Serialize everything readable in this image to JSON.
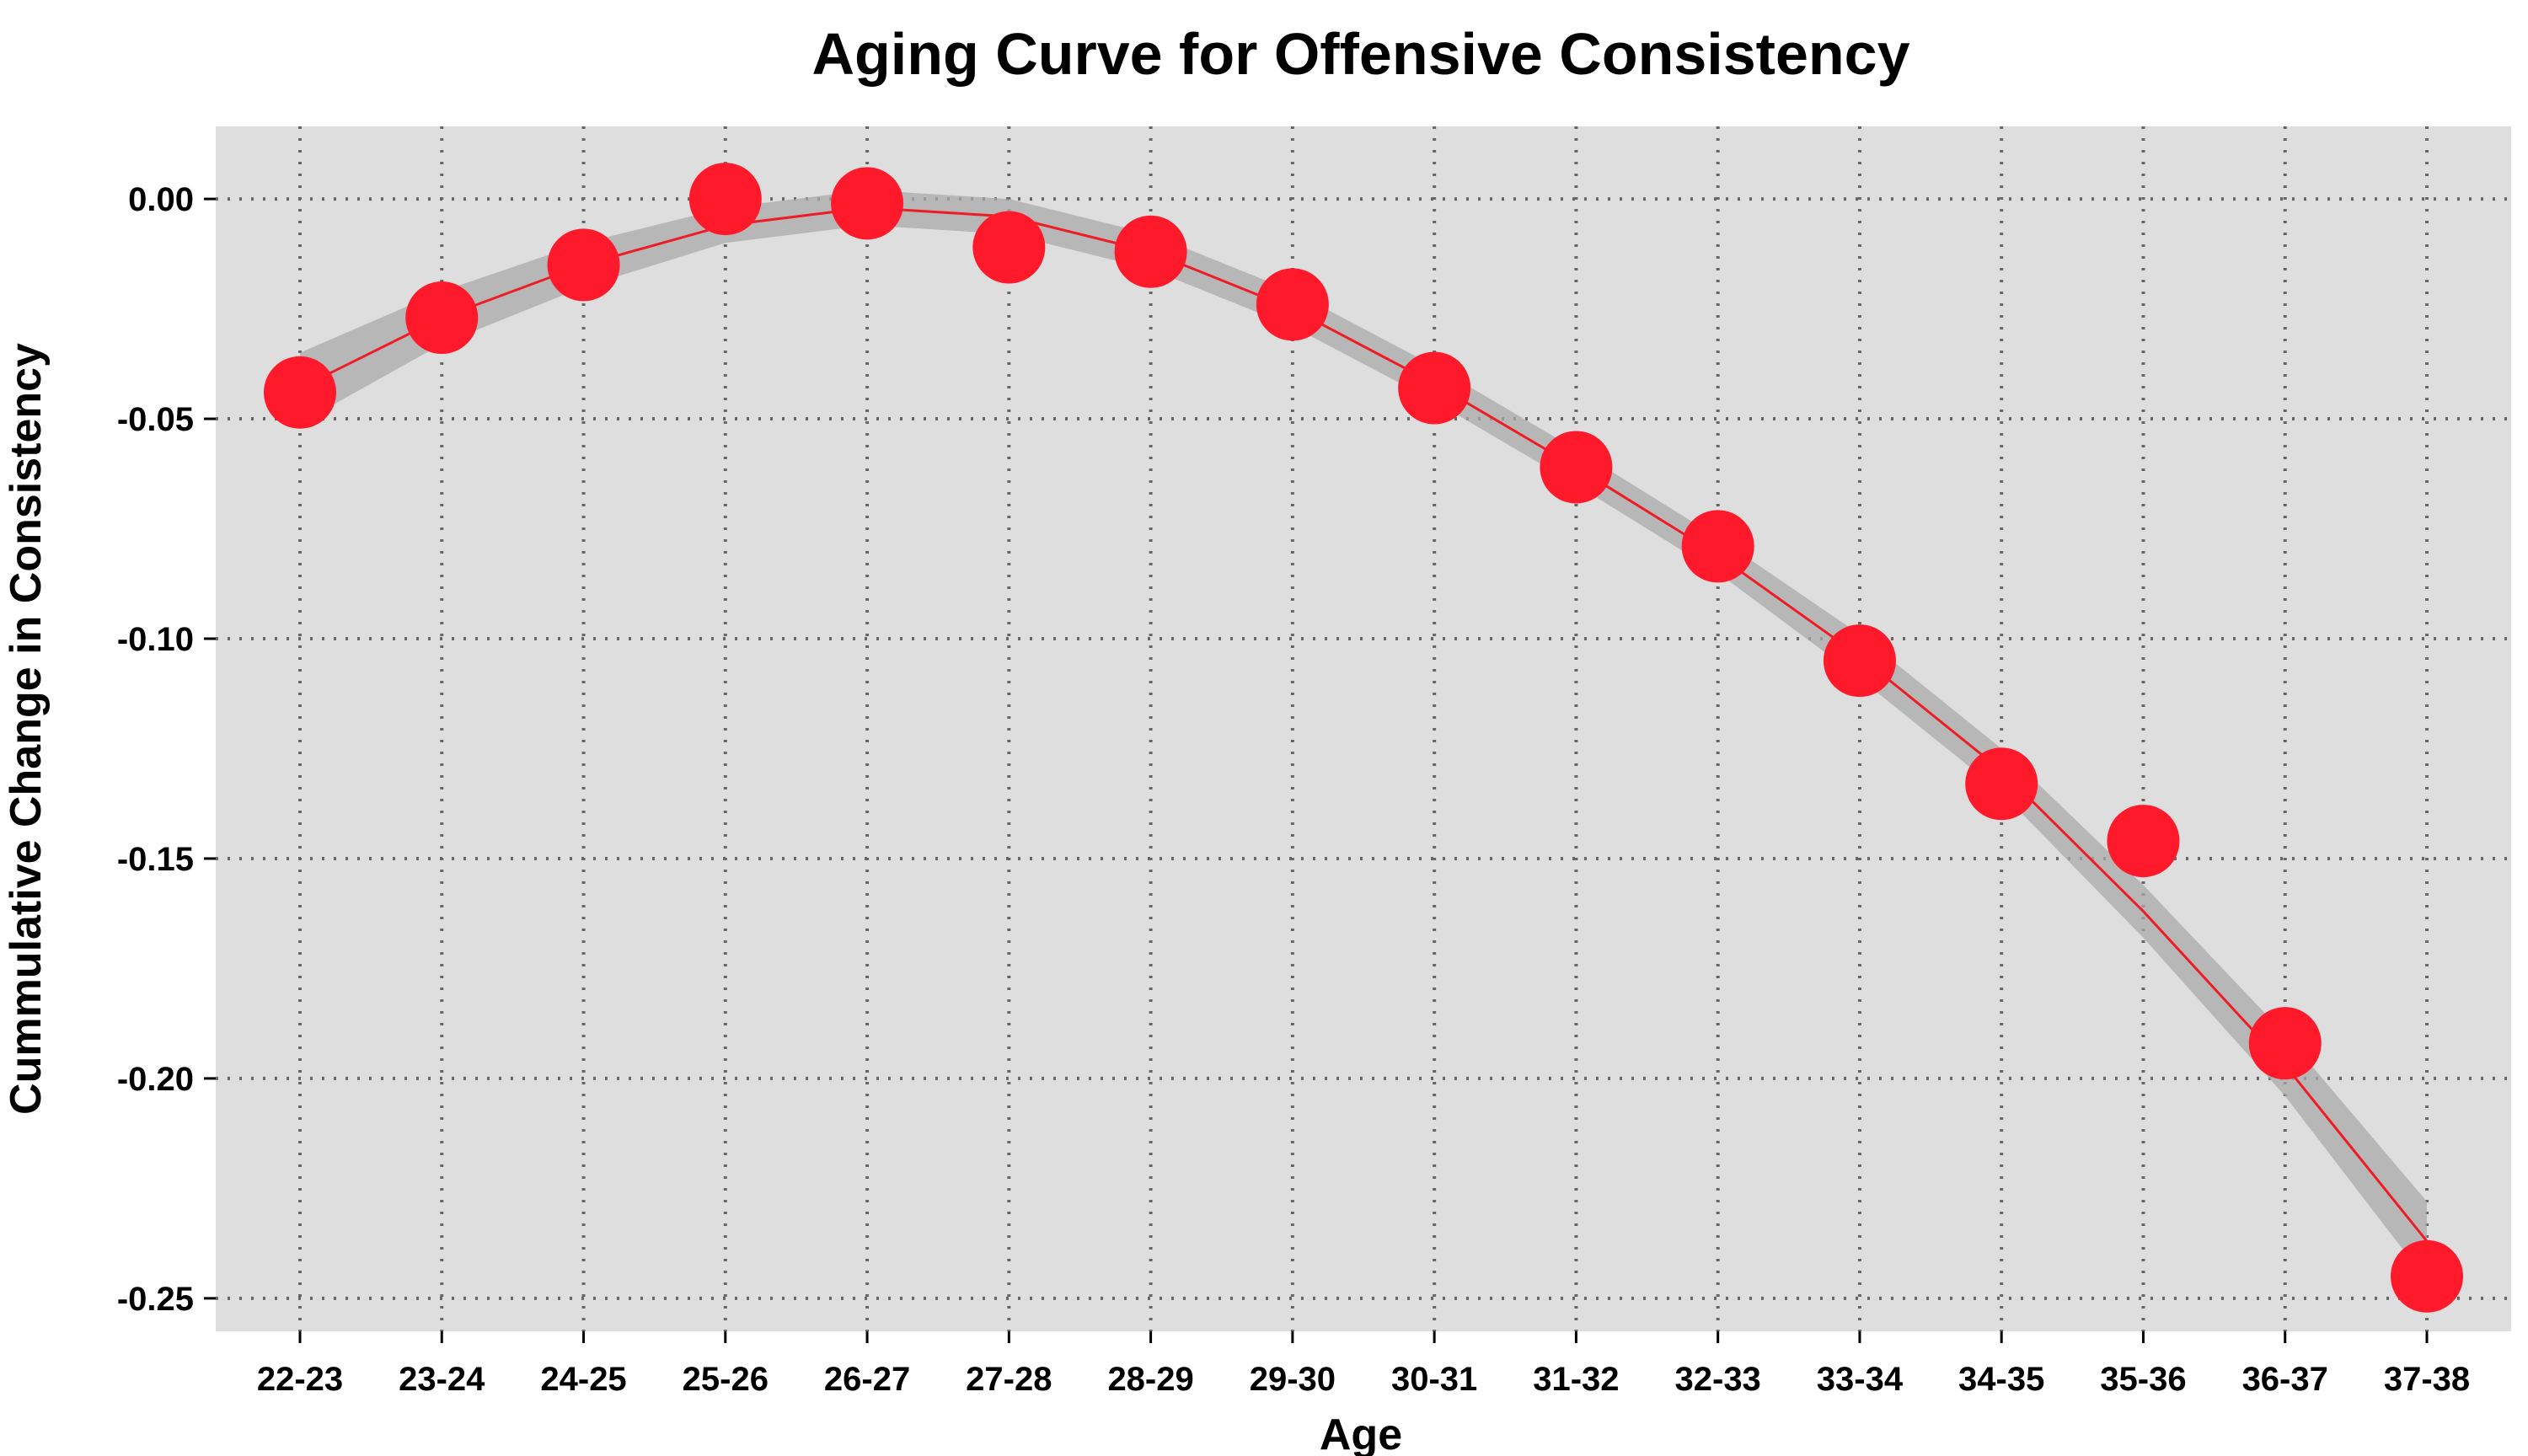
{
  "chart_data": {
    "type": "scatter",
    "title": "Aging Curve for Offensive Consistency",
    "xlabel": "Age",
    "ylabel": "Cummulative Change in Consistency",
    "categories": [
      "22-23",
      "23-24",
      "24-25",
      "25-26",
      "26-27",
      "27-28",
      "28-29",
      "29-30",
      "30-31",
      "31-32",
      "32-33",
      "33-34",
      "34-35",
      "35-36",
      "36-37",
      "37-38"
    ],
    "points": [
      -0.044,
      -0.027,
      -0.015,
      0.0,
      -0.001,
      -0.011,
      -0.012,
      -0.024,
      -0.043,
      -0.061,
      -0.079,
      -0.105,
      -0.133,
      -0.146,
      -0.192,
      -0.245
    ],
    "smooth": [
      -0.043,
      -0.027,
      -0.015,
      -0.006,
      -0.002,
      -0.004,
      -0.012,
      -0.025,
      -0.042,
      -0.061,
      -0.081,
      -0.104,
      -0.13,
      -0.162,
      -0.197,
      -0.237
    ],
    "ci_halfwidth": [
      0.008,
      0.006,
      0.005,
      0.004,
      0.004,
      0.004,
      0.004,
      0.004,
      0.004,
      0.004,
      0.004,
      0.005,
      0.005,
      0.006,
      0.007,
      0.009
    ],
    "yticks": [
      0.0,
      -0.05,
      -0.1,
      -0.15,
      -0.2,
      -0.25
    ],
    "ytick_labels": [
      "0.00",
      "-0.05",
      "-0.10",
      "-0.15",
      "-0.20",
      "-0.25"
    ],
    "ylim": [
      -0.2575,
      0.0165
    ],
    "grid": true,
    "colors": {
      "points": "#ff1a2b",
      "line": "#ee1c25",
      "band": "#aaaaaa",
      "panel": "#dedede"
    }
  }
}
